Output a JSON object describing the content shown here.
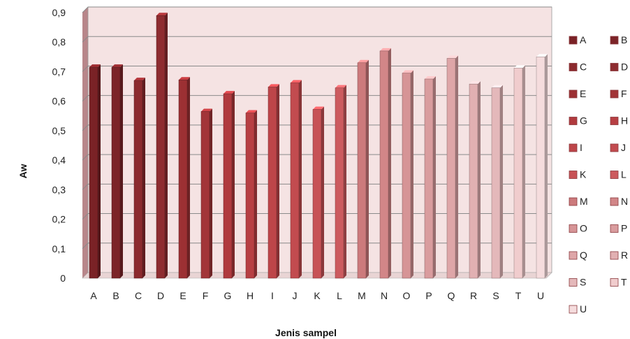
{
  "chart_data": {
    "type": "bar",
    "xlabel": "Jenis sampel",
    "ylabel": "Aw",
    "ylim": [
      0,
      0.9
    ],
    "yticks": [
      "0",
      "0,1",
      "0,2",
      "0,3",
      "0,4",
      "0,5",
      "0,6",
      "0,7",
      "0,8",
      "0,9"
    ],
    "categories": [
      "A",
      "B",
      "C",
      "D",
      "E",
      "F",
      "G",
      "H",
      "I",
      "J",
      "K",
      "L",
      "M",
      "N",
      "O",
      "P",
      "Q",
      "R",
      "S",
      "T",
      "U"
    ],
    "values": [
      0.715,
      0.715,
      0.67,
      0.89,
      0.672,
      0.565,
      0.625,
      0.56,
      0.648,
      0.662,
      0.572,
      0.645,
      0.73,
      0.77,
      0.695,
      0.675,
      0.745,
      0.658,
      0.645,
      0.712,
      0.75
    ],
    "colors": [
      "#7a2226",
      "#7c2428",
      "#8c2a2e",
      "#8e2c30",
      "#9c3033",
      "#a23538",
      "#b03a3e",
      "#b73f43",
      "#bd4549",
      "#c24b4f",
      "#c75256",
      "#cc5b5f",
      "#cc7a7c",
      "#d28688",
      "#d69496",
      "#d99c9e",
      "#dea6a8",
      "#e1b0b2",
      "#e4b8ba",
      "#f0cccd",
      "#f5dcdd"
    ],
    "legend": {
      "placement": "right",
      "items": [
        "A",
        "B",
        "C",
        "D",
        "E",
        "F",
        "G",
        "H",
        "I",
        "J",
        "K",
        "L",
        "M",
        "N",
        "O",
        "P",
        "Q",
        "R",
        "S",
        "T",
        "U"
      ]
    },
    "grid": true,
    "plot_background": "#f5e3e3",
    "wall_color": "#b8868a"
  }
}
